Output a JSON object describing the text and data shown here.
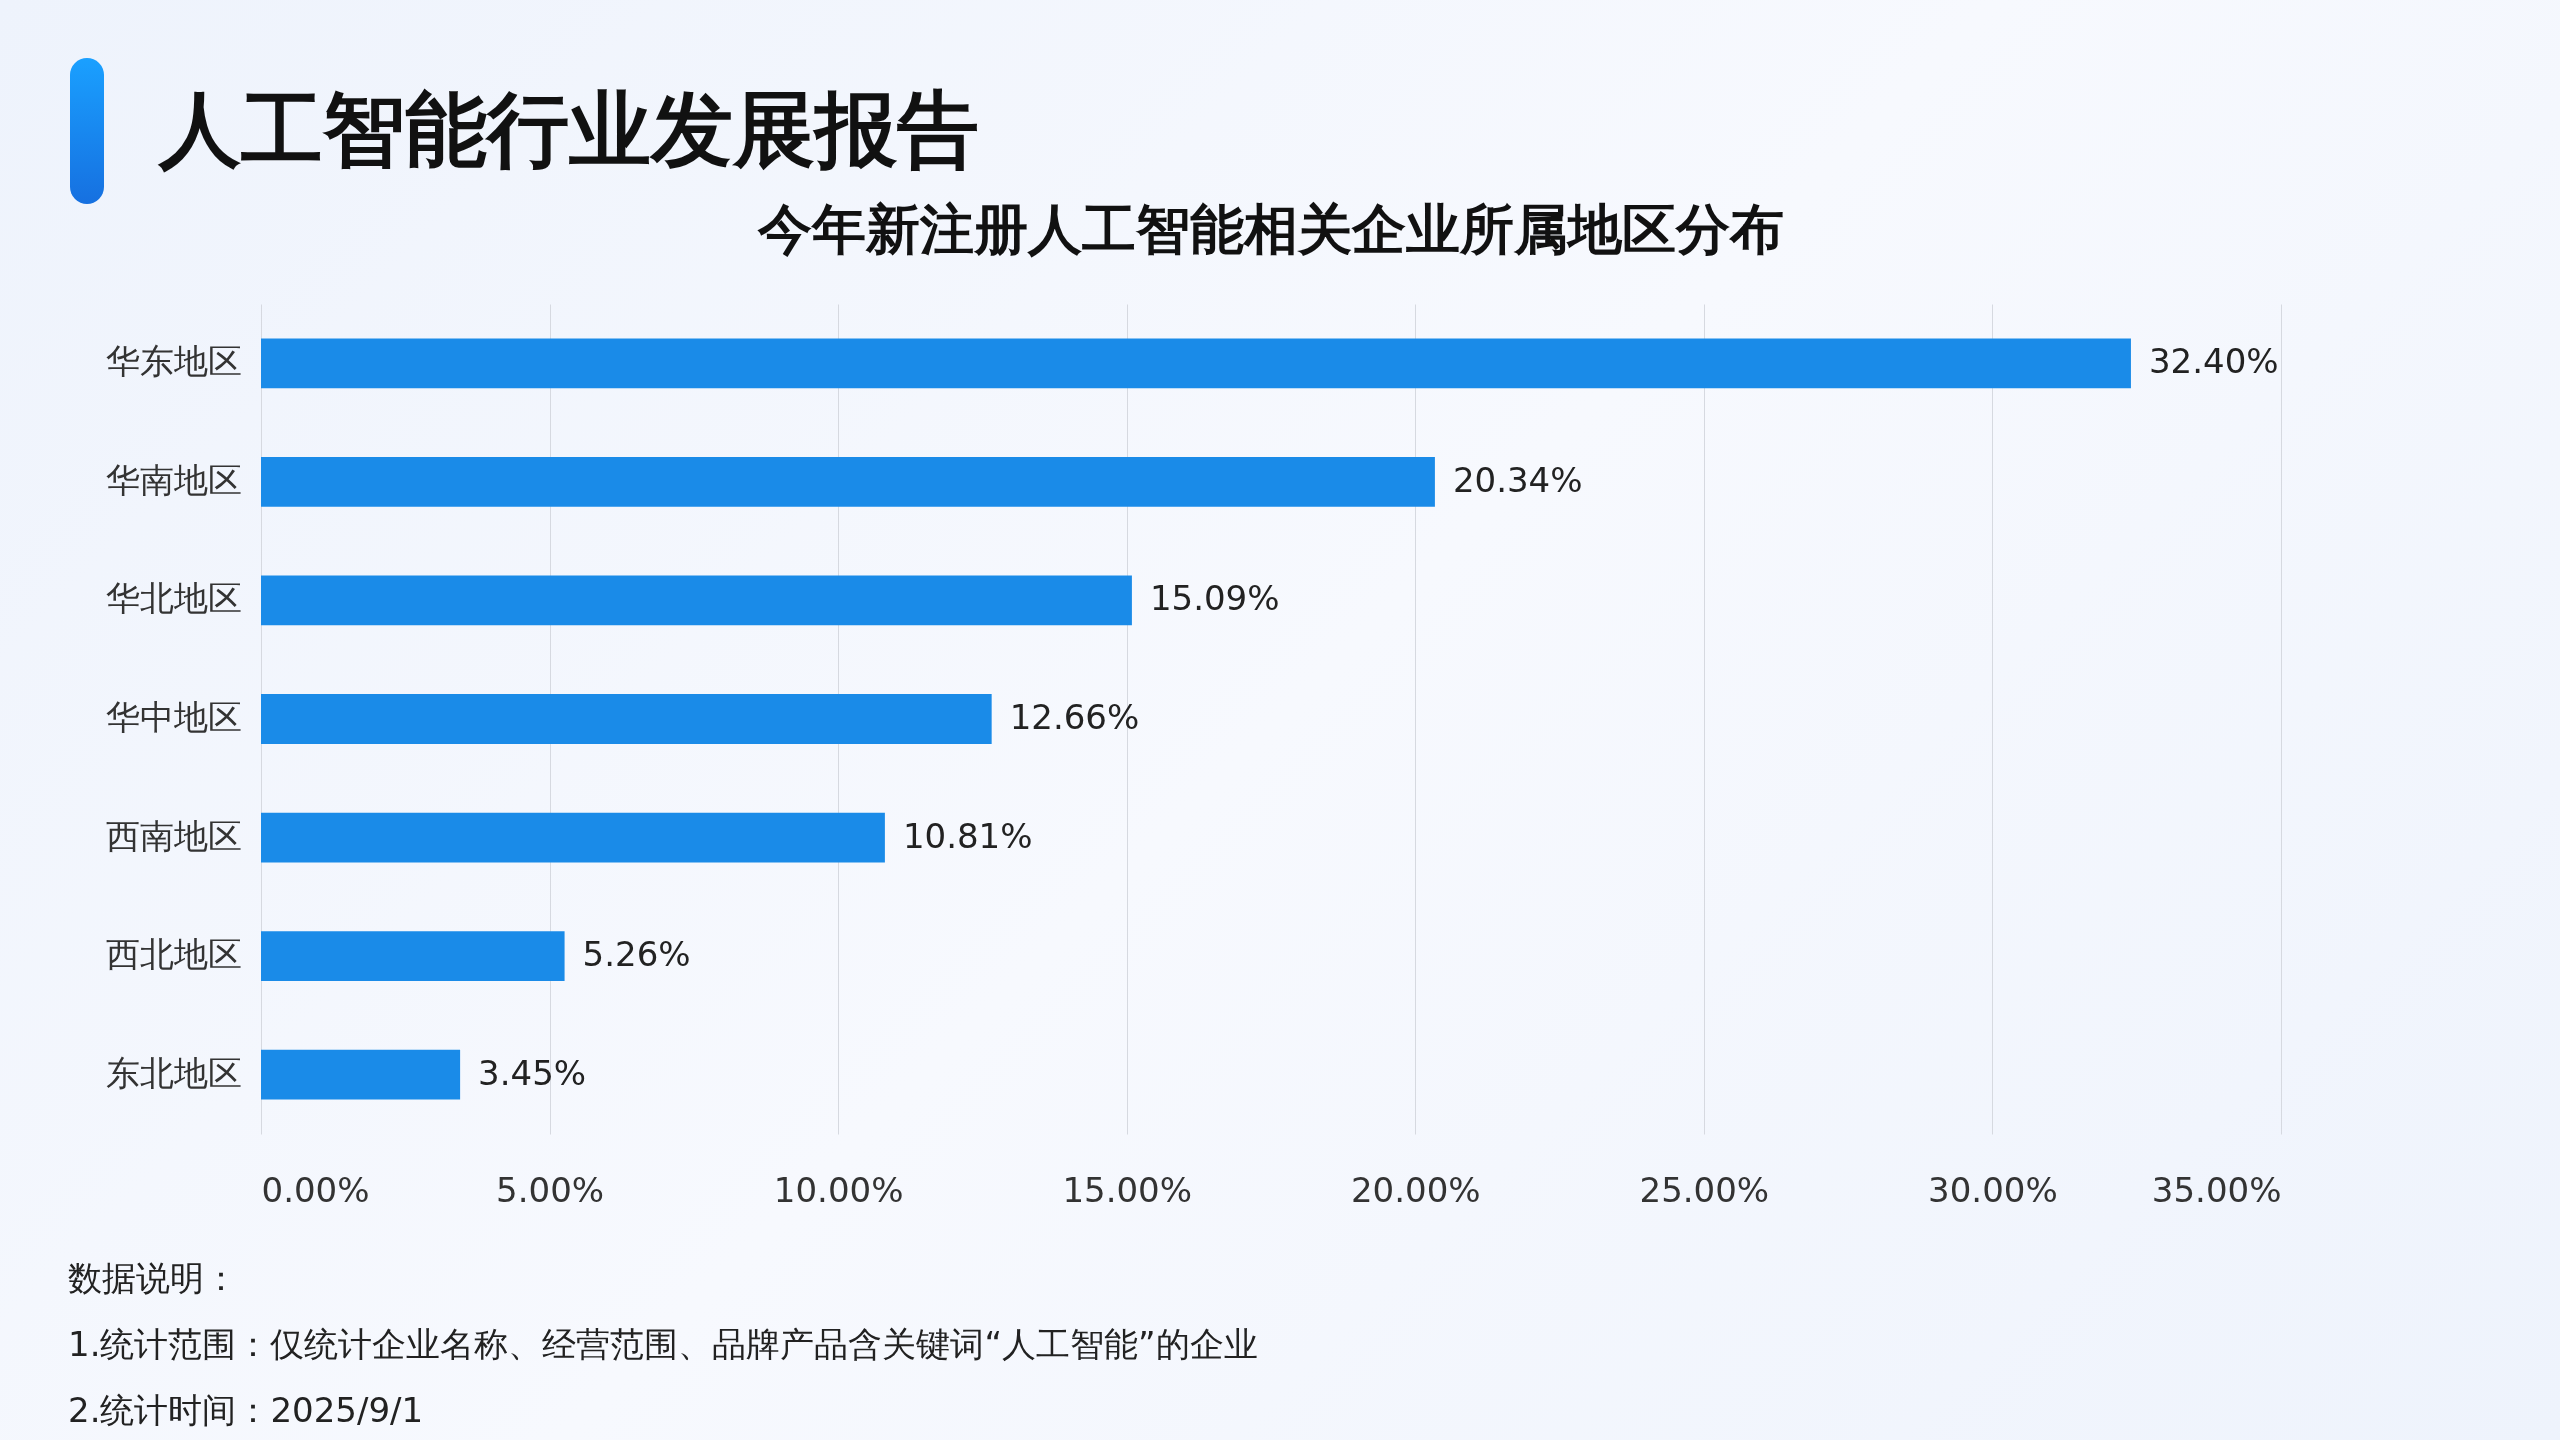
{
  "chart_data": {
    "type": "bar",
    "orientation": "horizontal",
    "title": "人工智能行业发展报告",
    "subtitle": "今年新注册人工智能相关企业所属地区分布",
    "categories": [
      "华东地区",
      "华南地区",
      "华北地区",
      "华中地区",
      "西南地区",
      "西北地区",
      "东北地区"
    ],
    "values": [
      32.4,
      20.34,
      15.09,
      12.66,
      10.81,
      5.26,
      3.45
    ],
    "value_labels": [
      "32.40%",
      "20.34%",
      "15.09%",
      "12.66%",
      "10.81%",
      "5.26%",
      "3.45%"
    ],
    "color": "#1a8be8",
    "xlim": [
      0,
      35
    ],
    "xticks": [
      {
        "value": 0,
        "label": "0.00%"
      },
      {
        "value": 5,
        "label": "5.00%"
      },
      {
        "value": 10,
        "label": "10.00%"
      },
      {
        "value": 15,
        "label": "15.00%"
      },
      {
        "value": 20,
        "label": "20.00%"
      },
      {
        "value": 25,
        "label": "25.00%"
      },
      {
        "value": 30,
        "label": "30.00%"
      },
      {
        "value": 35,
        "label": "35.00%"
      }
    ],
    "grid": "x",
    "annotations": [
      "数据说明：",
      "1.统计范围：仅统计企业名称、经营范围、品牌产品含关键词“人工智能”的企业",
      "2.统计时间：2025/9/1"
    ]
  }
}
